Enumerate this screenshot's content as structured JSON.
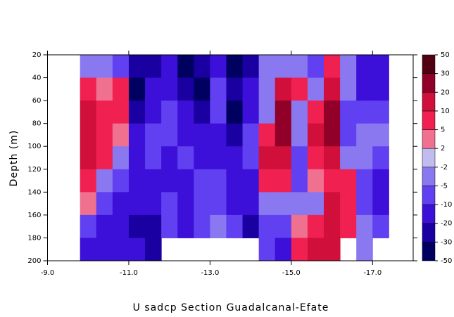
{
  "chart_data": {
    "type": "contour",
    "title": "U sadcp Section Guadalcanal-Efate",
    "y_label": "Depth (m)",
    "xlim": [
      -9,
      -18
    ],
    "ylim": [
      200,
      20
    ],
    "xticks": [
      {
        "value": -9,
        "label": "-9.0"
      },
      {
        "value": -11,
        "label": "-11.0"
      },
      {
        "value": -13,
        "label": "-13.0"
      },
      {
        "value": -15,
        "label": "-15.0"
      },
      {
        "value": -17,
        "label": "-17.0"
      }
    ],
    "yticks": [
      20,
      40,
      60,
      80,
      100,
      120,
      140,
      160,
      180,
      200
    ],
    "levels": [
      -50,
      -30,
      -20,
      -10,
      -5,
      -2,
      2,
      5,
      10,
      20,
      30,
      50
    ],
    "level_colors": [
      "#000060",
      "#1a00a0",
      "#3c10d8",
      "#6040f0",
      "#8a78f0",
      "#c0bcf0",
      "#f07090",
      "#f02050",
      "#d0103a",
      "#900028",
      "#500010"
    ],
    "x": [
      -10.0,
      -10.4,
      -10.8,
      -11.2,
      -11.6,
      -12.0,
      -12.4,
      -12.8,
      -13.2,
      -13.6,
      -14.0,
      -14.4,
      -14.8,
      -15.2,
      -15.6,
      -16.0,
      -16.4,
      -16.8,
      -17.2
    ],
    "y": [
      30,
      50,
      70,
      90,
      110,
      130,
      150,
      170,
      190
    ],
    "z": [
      [
        -3,
        -5,
        -10,
        -30,
        -25,
        -20,
        -35,
        -30,
        -15,
        -35,
        -30,
        -5,
        -5,
        -3,
        -10,
        8,
        -5,
        -15,
        -20
      ],
      [
        5,
        3,
        8,
        -35,
        -20,
        -15,
        -25,
        -35,
        -10,
        -30,
        -20,
        -3,
        15,
        8,
        -5,
        15,
        -3,
        -12,
        -15
      ],
      [
        12,
        5,
        5,
        -25,
        -12,
        -10,
        -15,
        -30,
        -8,
        -35,
        -12,
        -5,
        25,
        -3,
        5,
        20,
        -8,
        -8,
        -8
      ],
      [
        15,
        8,
        2,
        -20,
        -8,
        -8,
        -12,
        -20,
        -12,
        -25,
        -10,
        8,
        20,
        -5,
        10,
        25,
        -10,
        -5,
        -5
      ],
      [
        12,
        5,
        -5,
        -15,
        -10,
        -12,
        -10,
        -12,
        -15,
        -20,
        -8,
        10,
        12,
        -8,
        8,
        15,
        -3,
        -3,
        -10
      ],
      [
        8,
        -3,
        -10,
        -12,
        -15,
        -15,
        -15,
        -10,
        -10,
        -15,
        -12,
        6,
        5,
        -10,
        2,
        8,
        5,
        -8,
        -15
      ],
      [
        3,
        -8,
        -12,
        -20,
        -20,
        -10,
        -20,
        -8,
        -8,
        -12,
        -20,
        -3,
        -3,
        -3,
        -3,
        12,
        8,
        -10,
        -12
      ],
      [
        -8,
        -15,
        -15,
        -25,
        -25,
        -8,
        -12,
        -10,
        -5,
        -10,
        -30,
        -8,
        -8,
        3,
        8,
        15,
        8,
        -3,
        -8
      ],
      [
        -15,
        -20,
        -20,
        -20,
        -30,
        null,
        null,
        null,
        null,
        null,
        null,
        -10,
        -15,
        8,
        10,
        10,
        null,
        -5,
        null
      ]
    ]
  }
}
